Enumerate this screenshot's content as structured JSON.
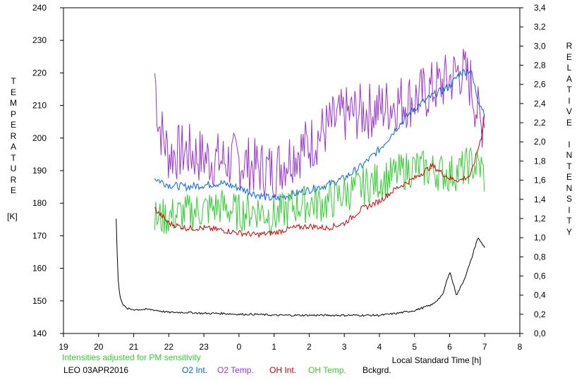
{
  "chart_data": {
    "type": "line",
    "station": "LEO 03APR2016",
    "note": "Intensities adjusted for PM sensitivity",
    "ylabel_left_letters": [
      "T",
      "E",
      "M",
      "P",
      "E",
      "R",
      "A",
      "T",
      "U",
      "R",
      "E"
    ],
    "ylabel_left_unit": "[K]",
    "ylabel_right_letters": [
      "R",
      "E",
      "L",
      "A",
      "T",
      "I",
      "V",
      "E",
      "",
      "I",
      "N",
      "T",
      "E",
      "N",
      "S",
      "I",
      "T",
      "Y"
    ],
    "xlabel": "Local Standard Time [h]",
    "x_ticks": [
      "19",
      "20",
      "21",
      "22",
      "23",
      "0",
      "1",
      "2",
      "3",
      "4",
      "5",
      "6",
      "7",
      "8"
    ],
    "y_left_ticks": [
      "140",
      "150",
      "160",
      "170",
      "180",
      "190",
      "200",
      "210",
      "220",
      "230",
      "240"
    ],
    "y_right_ticks": [
      "0,0",
      "0,2",
      "0,4",
      "0,6",
      "0,8",
      "1,0",
      "1,2",
      "1,4",
      "1,6",
      "1,8",
      "2,0",
      "2,2",
      "2,4",
      "2,6",
      "2,8",
      "3,0",
      "3,2",
      "3,4"
    ],
    "xlim": [
      19,
      32
    ],
    "ylim_left": [
      140,
      240
    ],
    "ylim_right": [
      0,
      3.4
    ],
    "legend": [
      {
        "name": "O2 Int.",
        "color": "#0066dd"
      },
      {
        "name": "O2 Temp.",
        "color": "#9933cc"
      },
      {
        "name": "OH Int.",
        "color": "#cc0000"
      },
      {
        "name": "OH Temp.",
        "color": "#33cc33"
      },
      {
        "name": "Bckgrd.",
        "color": "#000000"
      }
    ],
    "series": [
      {
        "name": "O2 Temp.",
        "color": "#9933cc",
        "axis": "left",
        "noise": 9,
        "x": [
          21.6,
          21.7,
          22.0,
          22.5,
          23.0,
          23.5,
          24.0,
          24.5,
          25.0,
          25.5,
          26.0,
          26.5,
          27.0,
          27.5,
          28.0,
          28.5,
          29.0,
          29.5,
          30.0,
          30.3,
          30.6,
          30.9,
          31.0
        ],
        "y": [
          220,
          205,
          195,
          196,
          194,
          193,
          193,
          191,
          190,
          195,
          198,
          203,
          207,
          208,
          209,
          211,
          212,
          215,
          218,
          221,
          217,
          203,
          210
        ]
      },
      {
        "name": "O2 Int.",
        "color": "#0066dd",
        "axis": "right",
        "noise": 0.04,
        "x": [
          21.6,
          22.0,
          22.5,
          23.0,
          23.5,
          24.0,
          24.5,
          25.0,
          25.5,
          26.0,
          26.5,
          27.0,
          27.5,
          28.0,
          28.5,
          29.0,
          29.5,
          30.0,
          30.3,
          30.6,
          30.8,
          31.0
        ],
        "y": [
          1.62,
          1.55,
          1.53,
          1.55,
          1.57,
          1.52,
          1.45,
          1.4,
          1.45,
          1.5,
          1.55,
          1.62,
          1.75,
          1.92,
          2.15,
          2.35,
          2.48,
          2.58,
          2.72,
          2.75,
          2.45,
          2.3
        ]
      },
      {
        "name": "OH Temp.",
        "color": "#33cc33",
        "axis": "left",
        "noise": 6,
        "x": [
          21.6,
          22.0,
          22.5,
          23.0,
          23.5,
          24.0,
          24.5,
          25.0,
          25.5,
          26.0,
          26.5,
          27.0,
          27.5,
          28.0,
          28.5,
          29.0,
          29.5,
          30.0,
          30.3,
          30.6,
          30.9,
          31.0
        ],
        "y": [
          175,
          176,
          177,
          178,
          179,
          177,
          178,
          176,
          179,
          180,
          180,
          183,
          185,
          187,
          189,
          191,
          190,
          189,
          190,
          192,
          191,
          188
        ]
      },
      {
        "name": "OH Int.",
        "color": "#cc0000",
        "axis": "right",
        "noise": 0.03,
        "x": [
          21.6,
          22.0,
          22.5,
          23.0,
          23.5,
          24.0,
          24.5,
          25.0,
          25.5,
          26.0,
          26.5,
          27.0,
          27.5,
          28.0,
          28.5,
          29.0,
          29.5,
          30.0,
          30.3,
          30.6,
          30.9,
          31.0
        ],
        "y": [
          1.3,
          1.15,
          1.1,
          1.1,
          1.08,
          1.05,
          1.03,
          1.05,
          1.1,
          1.12,
          1.1,
          1.15,
          1.3,
          1.38,
          1.52,
          1.62,
          1.75,
          1.62,
          1.6,
          1.65,
          2.05,
          2.3
        ]
      },
      {
        "name": "Bckgrd.",
        "color": "#000000",
        "axis": "right",
        "noise": 0.01,
        "x": [
          20.5,
          20.55,
          20.6,
          20.7,
          20.8,
          21.0,
          21.5,
          22.0,
          22.5,
          23.0,
          23.5,
          24.0,
          24.5,
          25.0,
          25.5,
          26.0,
          26.5,
          27.0,
          27.5,
          28.0,
          28.5,
          29.0,
          29.5,
          29.8,
          30.0,
          30.2,
          30.4,
          30.6,
          30.8,
          31.0
        ],
        "y": [
          1.2,
          0.6,
          0.4,
          0.3,
          0.26,
          0.25,
          0.25,
          0.22,
          0.22,
          0.21,
          0.21,
          0.2,
          0.2,
          0.19,
          0.19,
          0.19,
          0.19,
          0.19,
          0.19,
          0.19,
          0.21,
          0.24,
          0.3,
          0.4,
          0.65,
          0.4,
          0.55,
          0.75,
          1.0,
          0.9
        ]
      }
    ]
  }
}
